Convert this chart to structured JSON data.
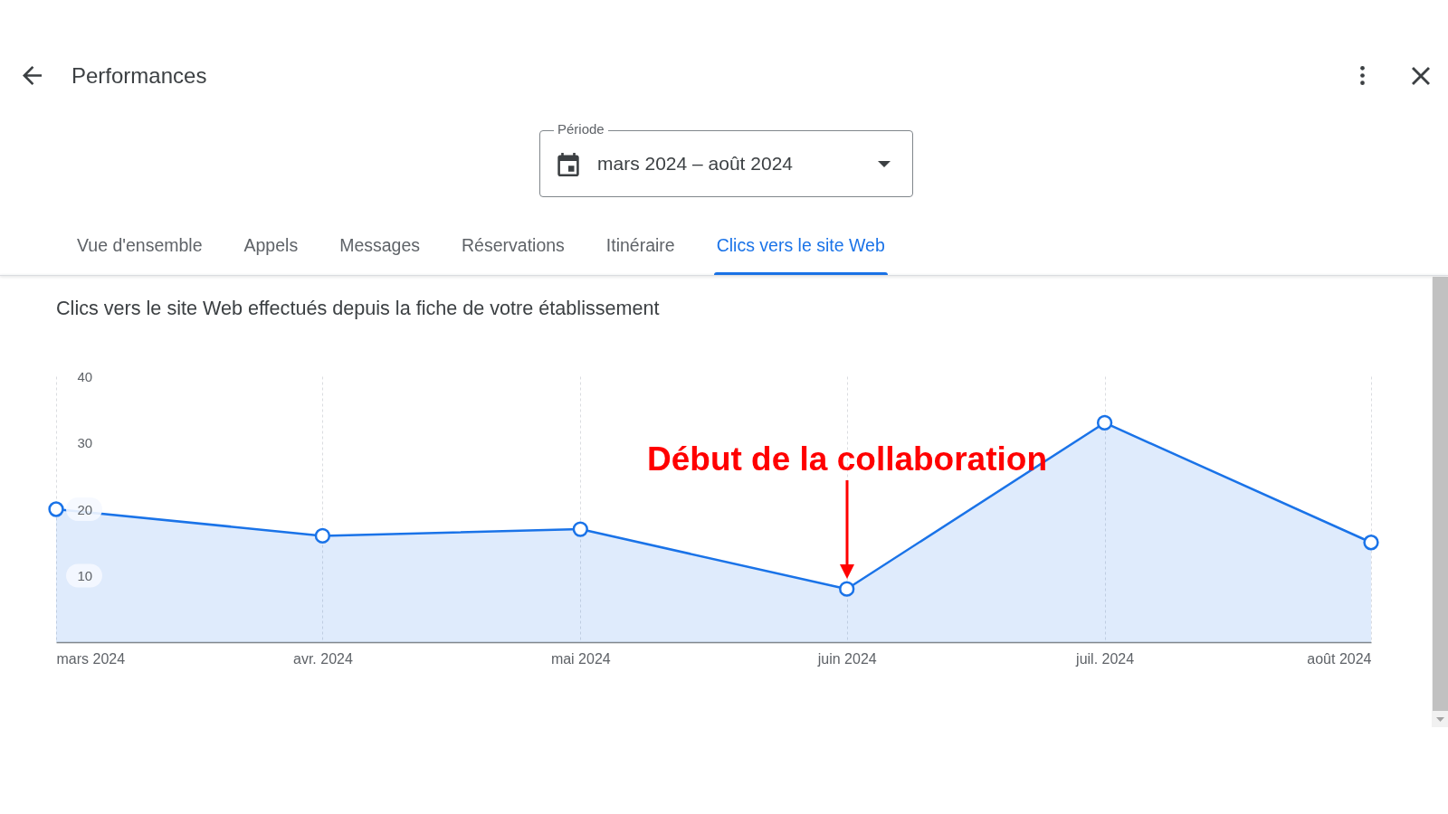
{
  "chart_data": {
    "type": "area",
    "title": "Performances",
    "subtitle": "Clics vers le site Web effectués depuis la fiche de votre établissement",
    "x": [
      "2024-03",
      "2024-04",
      "2024-05",
      "2024-06",
      "2024-07",
      "2024-08"
    ],
    "xlim": [
      "2024-03",
      "2024-08"
    ],
    "xticks": [
      {
        "value": "2024-03",
        "label": "mars 2024"
      },
      {
        "value": "2024-04",
        "label": "avr. 2024"
      },
      {
        "value": "2024-05",
        "label": "mai 2024"
      },
      {
        "value": "2024-06",
        "label": "juin 2024"
      },
      {
        "value": "2024-07",
        "label": "juil. 2024"
      },
      {
        "value": "2024-08",
        "label": "août 2024"
      }
    ],
    "values": [
      20,
      16,
      17,
      8,
      33,
      15
    ],
    "color": "#1a73e8",
    "marker": "circle",
    "ylim": [
      0,
      40
    ],
    "yticks": [
      10,
      20,
      30,
      40
    ],
    "grid": "x",
    "annotations": [
      "Période",
      "mars 2024 – août 2024",
      "Vue d'ensemble",
      "Appels",
      "Messages",
      "Réservations",
      "Itinéraire",
      "Clics vers le site Web",
      "Début de la collaboration"
    ]
  }
}
